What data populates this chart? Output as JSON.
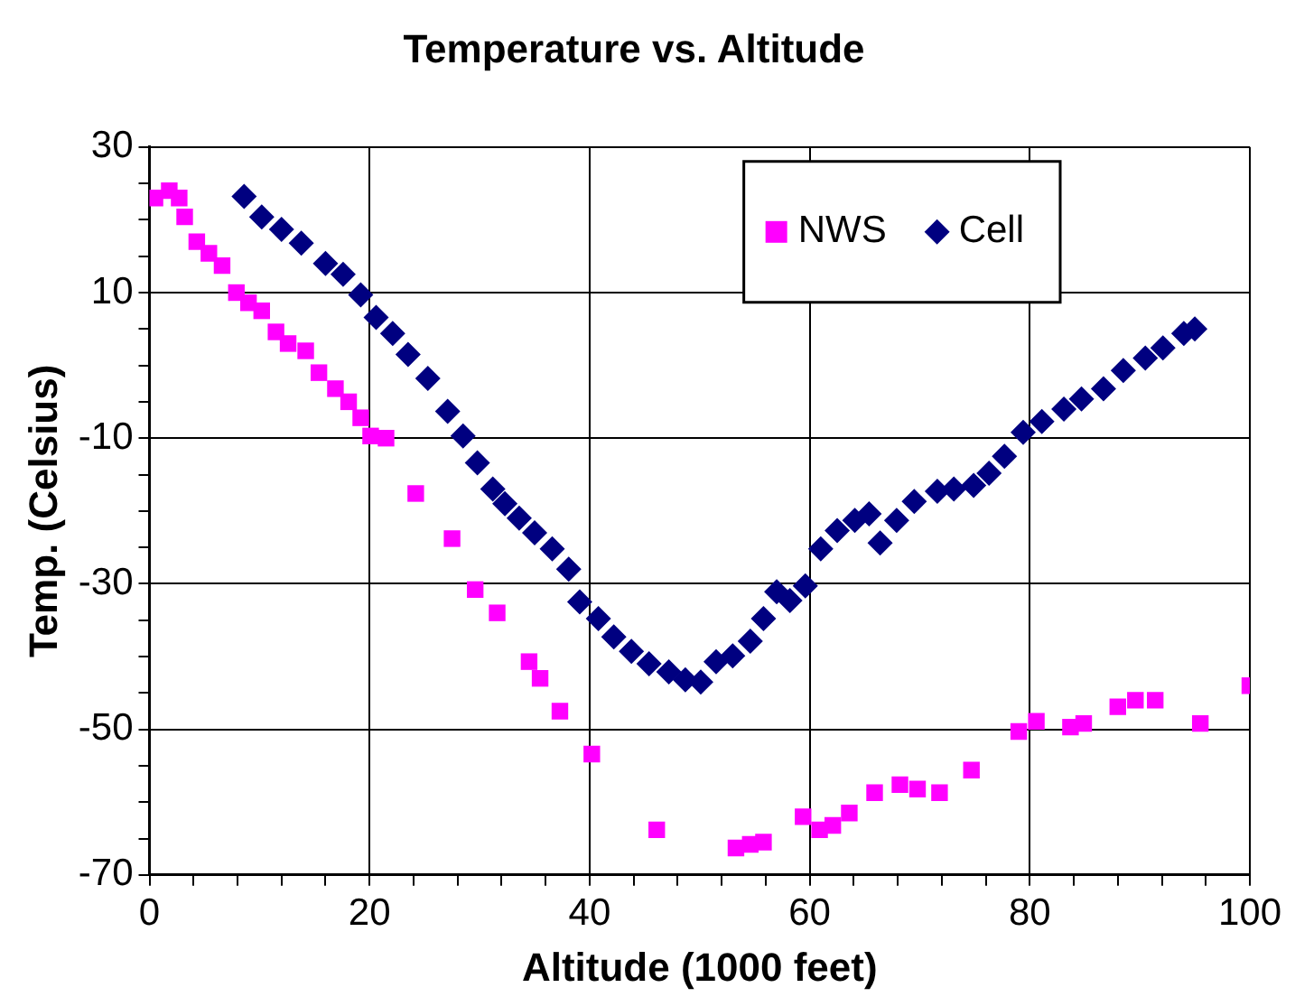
{
  "chart_data": {
    "type": "scatter",
    "title": "Temperature vs. Altitude",
    "xlabel": "Altitude (1000 feet)",
    "ylabel": "Temp. (Celsius)",
    "xlim": [
      0,
      100
    ],
    "xticks": [
      0,
      {
        "value": 4,
        "label": null
      },
      {
        "value": 8,
        "label": null
      },
      {
        "value": 12,
        "label": null
      },
      {
        "value": 16,
        "label": null
      },
      20,
      {
        "value": 24,
        "label": null
      },
      {
        "value": 28,
        "label": null
      },
      {
        "value": 32,
        "label": null
      },
      {
        "value": 36,
        "label": null
      },
      40,
      {
        "value": 44,
        "label": null
      },
      {
        "value": 48,
        "label": null
      },
      {
        "value": 52,
        "label": null
      },
      {
        "value": 56,
        "label": null
      },
      60,
      {
        "value": 64,
        "label": null
      },
      {
        "value": 68,
        "label": null
      },
      {
        "value": 72,
        "label": null
      },
      {
        "value": 76,
        "label": null
      },
      80,
      {
        "value": 84,
        "label": null
      },
      {
        "value": 88,
        "label": null
      },
      {
        "value": 92,
        "label": null
      },
      {
        "value": 96,
        "label": null
      },
      100
    ],
    "ylim": [
      -70,
      30
    ],
    "yticks": [
      -70,
      {
        "value": -65,
        "label": null
      },
      {
        "value": -60,
        "label": null
      },
      {
        "value": -55,
        "label": null
      },
      -50,
      {
        "value": -45,
        "label": null
      },
      {
        "value": -40,
        "label": null
      },
      {
        "value": -35,
        "label": null
      },
      -30,
      {
        "value": -25,
        "label": null
      },
      {
        "value": -20,
        "label": null
      },
      {
        "value": -15,
        "label": null
      },
      -10,
      {
        "value": -5,
        "label": null
      },
      {
        "value": 0,
        "label": null
      },
      {
        "value": 5,
        "label": null
      },
      10,
      {
        "value": 15,
        "label": null
      },
      {
        "value": 20,
        "label": null
      },
      {
        "value": 25,
        "label": null
      },
      30
    ],
    "grid": true,
    "legend": "top right",
    "series": [
      {
        "name": "NWS",
        "color": "#ff00ff",
        "marker": "square",
        "x": [
          0.5,
          1.8,
          2.7,
          3.2,
          4.3,
          5.4,
          6.6,
          7.9,
          9,
          10.2,
          11.5,
          12.6,
          14.2,
          15.4,
          16.9,
          18.1,
          19.2,
          20.1,
          21.5,
          24.2,
          27.5,
          29.6,
          31.6,
          34.5,
          35.5,
          37.3,
          40.2,
          46.1,
          53.3,
          54.6,
          55.8,
          59.4,
          60.9,
          62.1,
          63.6,
          65.9,
          68.2,
          69.8,
          71.8,
          74.7,
          79,
          80.6,
          83.7,
          84.9,
          88,
          89.6,
          91.4,
          95.5,
          100
        ],
        "values": [
          23,
          24,
          23,
          20.4,
          17,
          15.4,
          13.7,
          10,
          8.6,
          7.5,
          4.6,
          3,
          2,
          -1,
          -3.2,
          -5,
          -7.2,
          -9.7,
          -10,
          -17.6,
          -23.8,
          -30.8,
          -34,
          -40.7,
          -43,
          -47.5,
          -53.4,
          -63.8,
          -66.3,
          -65.8,
          -65.5,
          -62,
          -63.8,
          -63.2,
          -61.5,
          -58.7,
          -57.6,
          -58.2,
          -58.7,
          -55.6,
          -50.3,
          -48.9,
          -49.7,
          -49.2,
          -46.9,
          -46,
          -46,
          -49.2,
          -44
        ]
      },
      {
        "name": "Cell",
        "color": "#000080",
        "marker": "diamond",
        "x": [
          8.6,
          10.2,
          12,
          13.8,
          16,
          17.6,
          19.2,
          20.6,
          22.1,
          23.5,
          25.3,
          27.1,
          28.5,
          29.8,
          31.2,
          32.3,
          33.6,
          35,
          36.6,
          38.1,
          39.1,
          40.8,
          42.2,
          43.8,
          45.4,
          47.2,
          48.7,
          50.1,
          51.5,
          53,
          54.6,
          55.8,
          57,
          58.2,
          59.6,
          61,
          62.5,
          64.1,
          65.4,
          66.4,
          67.9,
          69.5,
          71.6,
          73.1,
          74.9,
          76.3,
          77.7,
          79.4,
          81.1,
          83.1,
          84.7,
          86.7,
          88.5,
          90.5,
          92.1,
          94,
          95
        ],
        "values": [
          23.2,
          20.4,
          18.7,
          16.8,
          14,
          12.5,
          9.7,
          6.6,
          4.4,
          1.5,
          -1.8,
          -6.3,
          -9.7,
          -13.4,
          -17,
          -19,
          -21,
          -23,
          -25.2,
          -28,
          -32.5,
          -34.8,
          -37.3,
          -39.3,
          -41,
          -42.1,
          -43.2,
          -43.5,
          -40.7,
          -39.9,
          -37.9,
          -34.8,
          -31.1,
          -32.3,
          -30.3,
          -25.2,
          -22.7,
          -21.3,
          -20.4,
          -24.4,
          -21.3,
          -18.7,
          -17.3,
          -17,
          -16.5,
          -14.8,
          -12.5,
          -9.2,
          -7.7,
          -6,
          -4.6,
          -3.2,
          -0.7,
          1,
          2.4,
          4.4,
          5
        ]
      }
    ]
  }
}
